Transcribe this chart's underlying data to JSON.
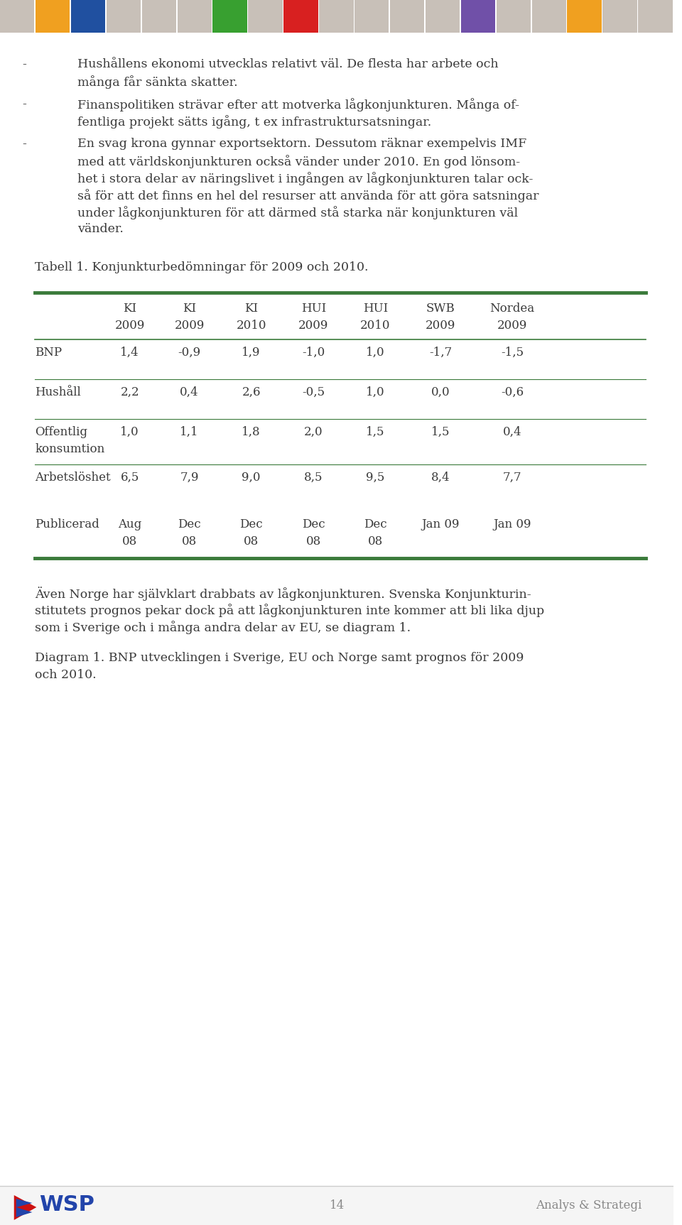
{
  "page_bg": "#ffffff",
  "header_bar_colors": [
    "#c8c0b8",
    "#f0a020",
    "#2050a0",
    "#c8c0b8",
    "#c8c0b8",
    "#c8c0b8",
    "#38a030",
    "#c8c0b8",
    "#d82020",
    "#c8c0b8",
    "#c8c0b8",
    "#c8c0b8",
    "#c8c0b8",
    "#7050a8",
    "#c8c0b8",
    "#c8c0b8",
    "#f0a020",
    "#c8c0b8",
    "#c8c0b8"
  ],
  "body_text_color": "#3a3a3a",
  "table_line_color": "#3a7a3a",
  "table_title": "Tabell 1. Konjunkturbedömningar för 2009 och 2010.",
  "col_headers_line1": [
    "KI",
    "KI",
    "KI",
    "HUI",
    "HUI",
    "SWB",
    "Nordea"
  ],
  "col_headers_line2": [
    "2009",
    "2009",
    "2010",
    "2009",
    "2010",
    "2009",
    "2009"
  ],
  "row_labels": [
    "BNP",
    "Hushåll",
    "Offentlig",
    "konsumtion",
    "Arbetslöshet",
    "",
    "Publicerad"
  ],
  "table_data": [
    [
      "1,4",
      "-0,9",
      "1,9",
      "-1,0",
      "1,0",
      "-1,7",
      "-1,5"
    ],
    [
      "2,2",
      "0,4",
      "2,6",
      "-0,5",
      "1,0",
      "0,0",
      "-0,6"
    ],
    [
      "1,0",
      "1,1",
      "1,8",
      "2,0",
      "1,5",
      "1,5",
      "0,4"
    ],
    [
      "",
      "",
      "",
      "",
      "",
      "",
      ""
    ],
    [
      "6,5",
      "7,9",
      "9,0",
      "8,5",
      "9,5",
      "8,4",
      "7,7"
    ],
    [
      "",
      "",
      "",
      "",
      "",
      "",
      ""
    ],
    [
      "Aug",
      "Dec",
      "Dec",
      "Dec",
      "Dec",
      "Jan 09",
      "Jan 09"
    ]
  ],
  "publicerad_line2": [
    "08",
    "08",
    "08",
    "08",
    "08",
    "",
    ""
  ],
  "page_number": "14",
  "footer_right": "Analys & Strategi",
  "wsp_color": "#2244aa",
  "wsp_red": "#cc1111"
}
